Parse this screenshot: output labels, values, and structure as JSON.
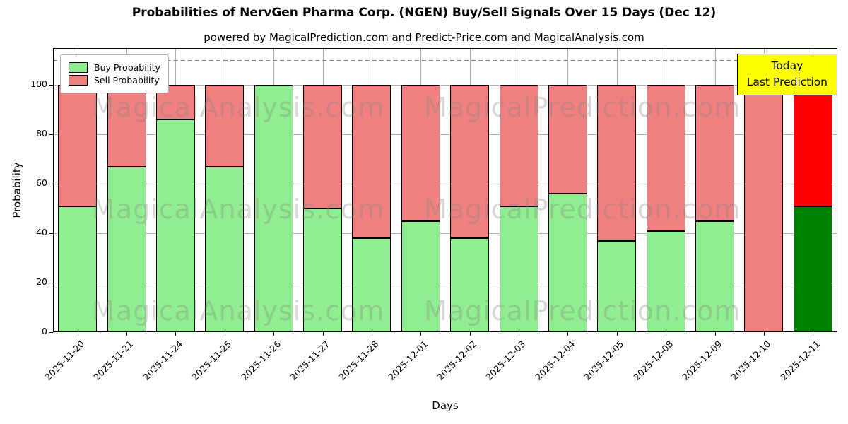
{
  "figure": {
    "background": "#ffffff",
    "axes_edge_color": "#000000",
    "grid_color": "#b0b0b0",
    "dashed_line_color": "#7f7f7f"
  },
  "chart_data": {
    "type": "bar",
    "stacked": true,
    "title": "Probabilities of NervGen Pharma Corp. (NGEN) Buy/Sell Signals Over 15 Days (Dec 12)",
    "subtitle": "powered by MagicalPrediction.com and Predict-Price.com and MagicalAnalysis.com",
    "xlabel": "Days",
    "ylabel": "Probability",
    "ylim": [
      0,
      115
    ],
    "yticks": [
      0,
      20,
      40,
      60,
      80,
      100
    ],
    "grid": true,
    "dashed_guide_y": 110,
    "legend_position": "upper left",
    "categories": [
      "2025-11-20",
      "2025-11-21",
      "2025-11-24",
      "2025-11-25",
      "2025-11-26",
      "2025-11-27",
      "2025-11-28",
      "2025-12-01",
      "2025-12-02",
      "2025-12-03",
      "2025-12-04",
      "2025-12-05",
      "2025-12-08",
      "2025-12-09",
      "2025-12-10",
      "2025-12-11"
    ],
    "series": [
      {
        "name": "Buy Probability",
        "color": "#90ee90",
        "last_bar_color": "#008000",
        "values": [
          51,
          67,
          86,
          67,
          100,
          50,
          38,
          45,
          38,
          51,
          56,
          37,
          41,
          45,
          0,
          51
        ]
      },
      {
        "name": "Sell Probability",
        "color": "#f08080",
        "last_bar_color": "#ff0000",
        "values": [
          49,
          33,
          14,
          33,
          0,
          50,
          62,
          55,
          62,
          49,
          44,
          63,
          59,
          55,
          100,
          49
        ]
      }
    ]
  },
  "legend": {
    "items": [
      {
        "label": "Buy Probability",
        "color": "#90ee90"
      },
      {
        "label": "Sell Probability",
        "color": "#f08080"
      }
    ]
  },
  "annotation_box": {
    "lines": [
      "Today",
      "Last Prediction"
    ],
    "bg_color": "#ffff00",
    "border_color": "#000000"
  },
  "watermarks": {
    "texts": [
      "MagicalAnalysis.com",
      "MagicalPrediction.com"
    ],
    "color": "#808080"
  }
}
